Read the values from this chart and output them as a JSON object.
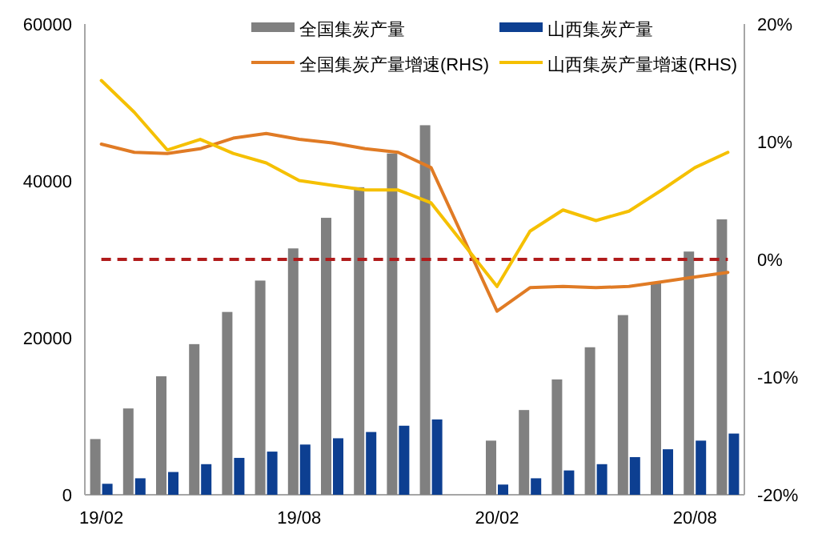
{
  "chart_data": {
    "type": "bar",
    "categories": [
      "19/02",
      null,
      null,
      null,
      null,
      null,
      "19/08",
      null,
      null,
      null,
      null,
      null,
      "20/02",
      null,
      null,
      null,
      null,
      null,
      "20/08",
      null
    ],
    "series": [
      {
        "name": "全国集炭产量",
        "color": "#808080",
        "values": [
          7100,
          11000,
          15100,
          19200,
          23300,
          27300,
          31400,
          35300,
          39200,
          43500,
          47100,
          null,
          6900,
          10800,
          14700,
          18800,
          22900,
          27000,
          31000,
          35100
        ]
      },
      {
        "name": "山西集炭产量",
        "color": "#0d3f91",
        "values": [
          1400,
          2100,
          2900,
          3900,
          4700,
          5500,
          6400,
          7200,
          8000,
          8800,
          9600,
          null,
          1300,
          2100,
          3100,
          3900,
          4800,
          5800,
          6900,
          7800
        ]
      },
      {
        "name": "全国集炭产量增速(RHS)",
        "type": "line",
        "axis": "y2",
        "color": "#e07b25",
        "values": [
          9.8,
          9.1,
          9.0,
          9.4,
          10.3,
          10.7,
          10.2,
          9.9,
          9.4,
          9.1,
          7.8,
          null,
          -4.4,
          -2.4,
          -2.3,
          -2.4,
          -2.3,
          -1.9,
          -1.5,
          -1.1
        ]
      },
      {
        "name": "山西集炭产量增速(RHS)",
        "type": "line",
        "axis": "y2",
        "color": "#f5c000",
        "values": [
          15.2,
          12.5,
          9.3,
          10.2,
          9.0,
          8.2,
          6.7,
          6.3,
          5.9,
          5.9,
          4.8,
          null,
          -2.3,
          2.4,
          4.2,
          3.3,
          4.1,
          5.9,
          7.8,
          9.1
        ]
      }
    ],
    "ylim": [
      0,
      60000
    ],
    "yticks": [
      0,
      20000,
      40000,
      60000
    ],
    "y2lim": [
      -20,
      20
    ],
    "y2ticks": [
      {
        "value": -20,
        "label": "-20%"
      },
      {
        "value": -10,
        "label": "-10%"
      },
      {
        "value": 0,
        "label": "0%"
      },
      {
        "value": 10,
        "label": "10%"
      },
      {
        "value": 20,
        "label": "20%"
      }
    ],
    "ref_lines": [
      {
        "axis": "y2",
        "value": 0,
        "color": "#b01c1c",
        "line_style": "dashed"
      }
    ],
    "legend": "top",
    "grid": false
  }
}
